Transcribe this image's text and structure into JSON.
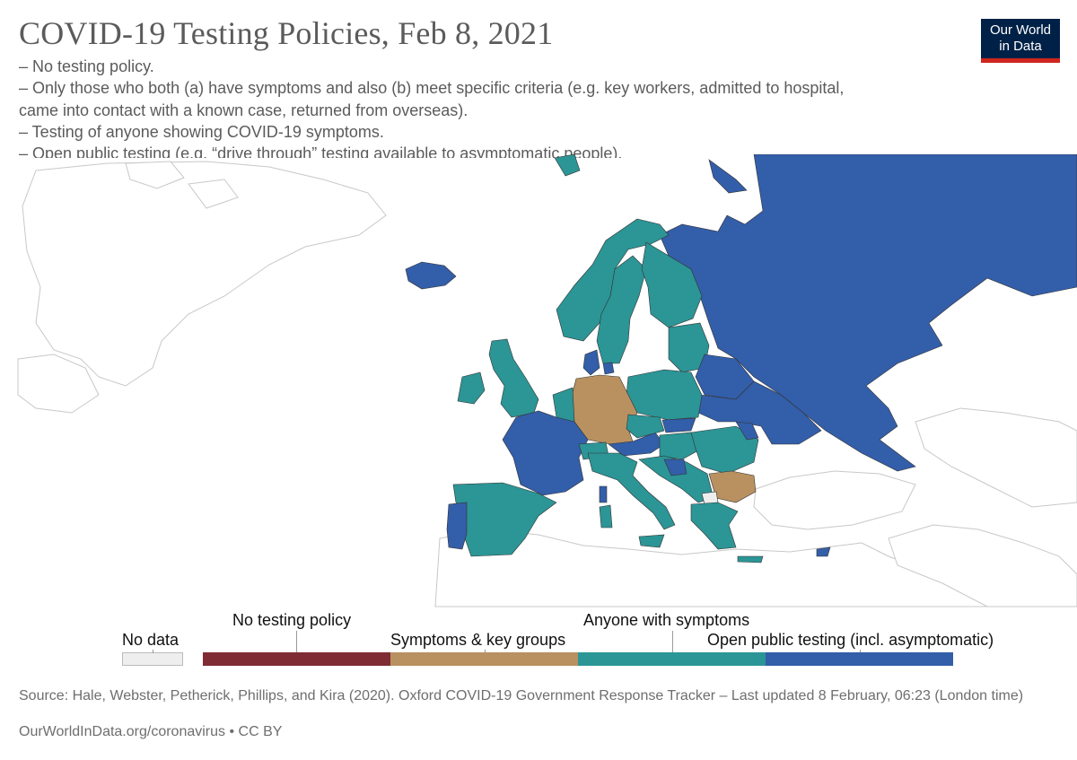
{
  "header": {
    "title": "COVID-19 Testing Policies, Feb 8, 2021",
    "logo_line1": "Our World",
    "logo_line2": "in Data"
  },
  "subtitle_lines": [
    "– No testing policy.",
    " – Only those who both (a) have symptoms and also (b) meet specific criteria (e.g. key workers, admitted to hospital,",
    "came into contact with a known case, returned from overseas).",
    " – Testing of anyone showing COVID-19 symptoms.",
    " – Open public testing (e.g. “drive through” testing available to asymptomatic people)."
  ],
  "colors": {
    "no_data": "#eeeeee",
    "no_testing": "#7f2c35",
    "symptoms_key_groups": "#b99160",
    "anyone_symptoms": "#2c9596",
    "open_public": "#335ea9",
    "outside_land": "#ffffff",
    "border": "#c8c8c8",
    "sea": "#ffffff"
  },
  "legend": {
    "no_data": "No data",
    "no_testing": "No testing policy",
    "symptoms_key_groups": "Symptoms & key groups",
    "anyone_symptoms": "Anyone with symptoms",
    "open_public": "Open public testing (incl. asymptomatic)"
  },
  "map_regions": [
    {
      "id": "russia",
      "category": "open_public"
    },
    {
      "id": "iceland",
      "category": "open_public"
    },
    {
      "id": "norway",
      "category": "anyone_symptoms"
    },
    {
      "id": "sweden",
      "category": "anyone_symptoms"
    },
    {
      "id": "finland",
      "category": "anyone_symptoms"
    },
    {
      "id": "denmark",
      "category": "open_public"
    },
    {
      "id": "uk",
      "category": "anyone_symptoms"
    },
    {
      "id": "ireland",
      "category": "anyone_symptoms"
    },
    {
      "id": "france",
      "category": "open_public"
    },
    {
      "id": "spain",
      "category": "anyone_symptoms"
    },
    {
      "id": "portugal",
      "category": "open_public"
    },
    {
      "id": "germany",
      "category": "symptoms_key_groups"
    },
    {
      "id": "poland",
      "category": "anyone_symptoms"
    },
    {
      "id": "italy",
      "category": "anyone_symptoms"
    },
    {
      "id": "romania",
      "category": "anyone_symptoms"
    },
    {
      "id": "bulgaria",
      "category": "symptoms_key_groups"
    },
    {
      "id": "ukraine",
      "category": "open_public"
    },
    {
      "id": "belarus",
      "category": "open_public"
    },
    {
      "id": "baltics",
      "category": "anyone_symptoms"
    },
    {
      "id": "austria",
      "category": "open_public"
    },
    {
      "id": "slovakia",
      "category": "open_public"
    },
    {
      "id": "hungary",
      "category": "anyone_symptoms"
    },
    {
      "id": "balkans",
      "category": "anyone_symptoms"
    },
    {
      "id": "greece",
      "category": "anyone_symptoms"
    },
    {
      "id": "north_macedonia",
      "category": "no_data"
    },
    {
      "id": "moldova",
      "category": "open_public"
    },
    {
      "id": "cyprus",
      "category": "open_public"
    }
  ],
  "source": "Source: Hale, Webster, Petherick, Phillips, and Kira (2020). Oxford COVID-19 Government Response Tracker – Last updated 8 February, 06:23 (London time)",
  "license": "OurWorldInData.org/coronavirus • CC BY"
}
